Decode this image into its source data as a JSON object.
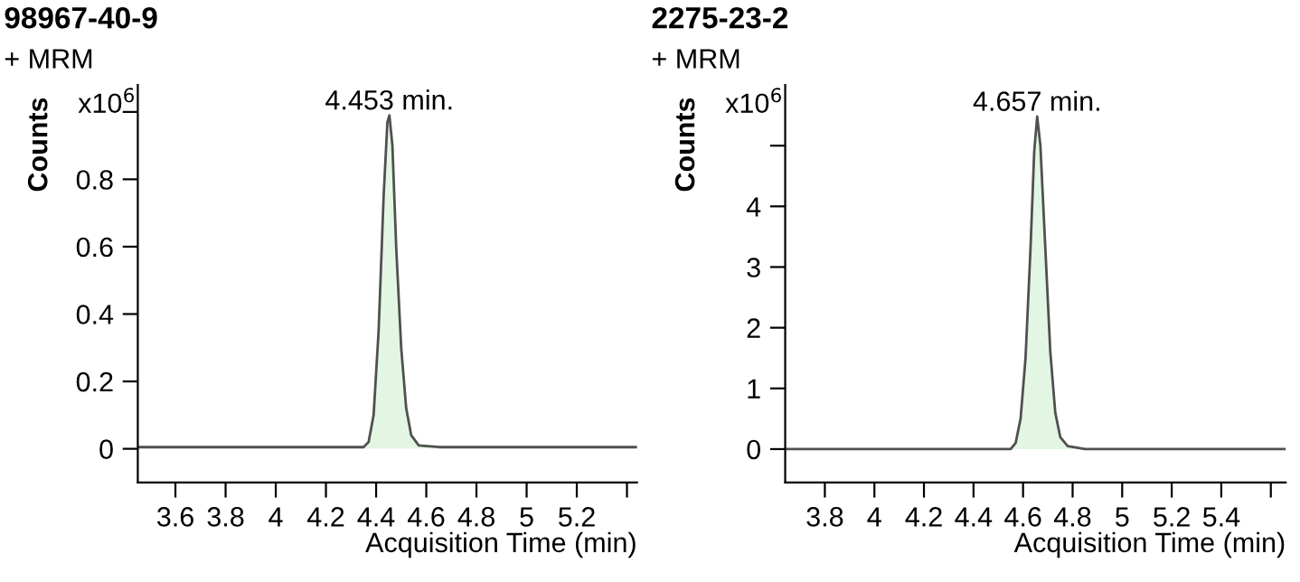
{
  "chart_data": [
    {
      "type": "area",
      "title": "98967-40-9",
      "xlabel": "Acquisition Time (min)",
      "ylabel": "Counts",
      "annotations": [
        "+ MRM",
        "x10$^{6}$",
        {
          "text": "4.453 min.",
          "x": 4.453,
          "y": 0.99
        }
      ],
      "series": [
        {
          "color": "#e3f6e3",
          "x": [
            3.45,
            4.35,
            4.37,
            4.39,
            4.41,
            4.43,
            4.445,
            4.453,
            4.465,
            4.48,
            4.5,
            4.52,
            4.54,
            4.57,
            4.65,
            5.44
          ],
          "values": [
            0.005,
            0.005,
            0.02,
            0.1,
            0.35,
            0.75,
            0.97,
            0.99,
            0.9,
            0.6,
            0.3,
            0.12,
            0.04,
            0.01,
            0.005,
            0.005
          ]
        }
      ],
      "xlim": [
        3.45,
        5.44
      ],
      "xticks": [
        3.6,
        3.8,
        4,
        4.2,
        4.4,
        4.6,
        4.8,
        5,
        5.2,
        {
          "value": 5.4,
          "label": null
        }
      ],
      "ylim": [
        -0.1,
        1.08
      ],
      "yticks": [
        0,
        0.2,
        0.4,
        0.6,
        0.8,
        {
          "value": 1,
          "label": null
        }
      ]
    },
    {
      "type": "area",
      "title": "2275-23-2",
      "xlabel": "Acquisition Time (min)",
      "ylabel": "Counts",
      "annotations": [
        "+ MRM",
        "x10$^{6}$",
        {
          "text": "4.657 min.",
          "x": 4.657,
          "y": 5.48
        }
      ],
      "series": [
        {
          "color": "#e3f6e3",
          "x": [
            3.64,
            4.55,
            4.57,
            4.59,
            4.61,
            4.63,
            4.645,
            4.657,
            4.67,
            4.69,
            4.71,
            4.73,
            4.75,
            4.78,
            4.85,
            5.66
          ],
          "values": [
            0,
            0,
            0.1,
            0.5,
            1.5,
            3.3,
            4.9,
            5.48,
            5.0,
            3.3,
            1.6,
            0.6,
            0.2,
            0.05,
            0,
            0
          ]
        }
      ],
      "xlim": [
        3.64,
        5.66
      ],
      "xticks": [
        3.8,
        4,
        4.2,
        4.4,
        4.6,
        4.8,
        5,
        5.2,
        5.4,
        {
          "value": 5.6,
          "label": null
        }
      ],
      "ylim": [
        -0.55,
        6.0
      ],
      "yticks": [
        0,
        1,
        2,
        3,
        4,
        {
          "value": 5,
          "label": null
        }
      ]
    }
  ]
}
